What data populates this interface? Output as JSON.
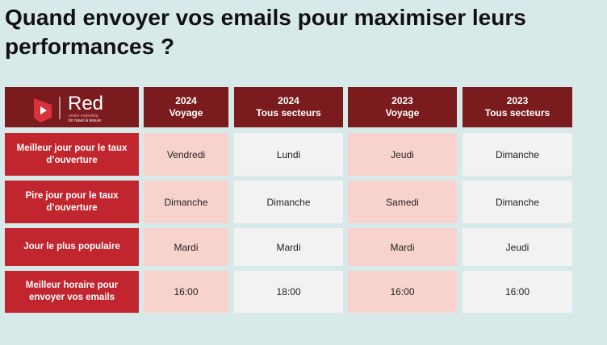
{
  "title": "Quand envoyer vos emails pour maximiser leurs performances ?",
  "logo": {
    "name": "Red",
    "tagline": [
      "online marketing",
      "for travel & leisure"
    ]
  },
  "table": {
    "header": [
      [
        "2024",
        "Voyage"
      ],
      [
        "2024",
        "Tous secteurs"
      ],
      [
        "2023",
        "Voyage"
      ],
      [
        "2023",
        "Tous secteurs"
      ]
    ],
    "rows": [
      {
        "label": "Meilleur jour pour le taux d’ouverture",
        "cells": [
          "Vendredi",
          "Lundi",
          "Jeudi",
          "Dimanche"
        ]
      },
      {
        "label": "Pire jour pour le taux d’ouverture",
        "cells": [
          "Dimanche",
          "Dimanche",
          "Samedi",
          "Dimanche"
        ]
      },
      {
        "label": "Jour le plus populaire",
        "cells": [
          "Mardi",
          "Mardi",
          "Mardi",
          "Jeudi"
        ]
      },
      {
        "label": "Meilleur horaire pour envoyer vos emails",
        "cells": [
          "16:00",
          "18:00",
          "16:00",
          "16:00"
        ]
      }
    ]
  }
}
